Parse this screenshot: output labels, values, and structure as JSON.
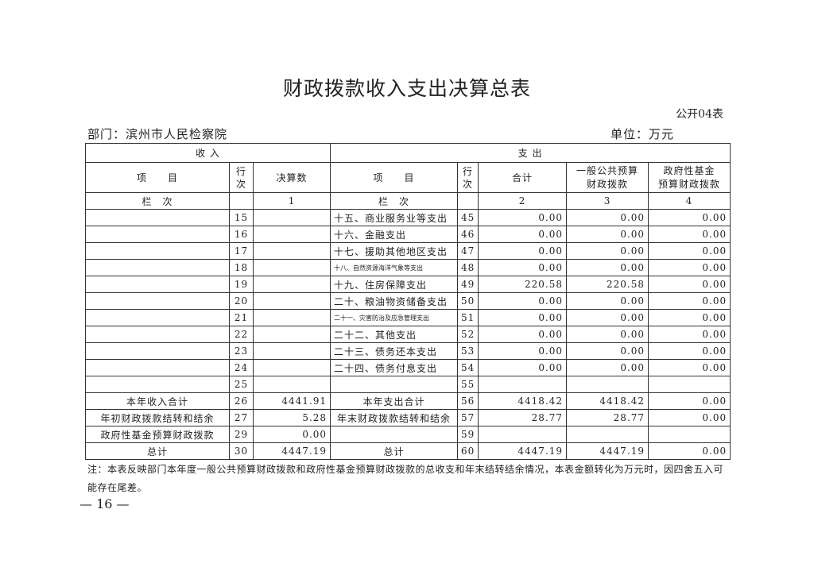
{
  "title": "财政拨款收入支出决算总表",
  "form_no": "公开04表",
  "department": "部门：滨州市人民检察院",
  "unit": "单位：万元",
  "header": {
    "income": "收 入",
    "expense": "支 出",
    "item": "项　　目",
    "line": "行\n次",
    "amount": "决算数",
    "total": "合计",
    "general": "一般公共预算\n财政拨款",
    "fund": "政府性基金\n预算财政拨款",
    "col_label": "栏　次",
    "col1": "1",
    "col2": "2",
    "col3": "3",
    "col4": "4"
  },
  "rows": [
    {
      "in_item": "",
      "in_line": "15",
      "in_amt": "",
      "ex_item": "十五、商业服务业等支出",
      "ex_line": "45",
      "total": "0.00",
      "general": "0.00",
      "fund": "0.00"
    },
    {
      "in_item": "",
      "in_line": "16",
      "in_amt": "",
      "ex_item": "十六、金融支出",
      "ex_line": "46",
      "total": "0.00",
      "general": "0.00",
      "fund": "0.00"
    },
    {
      "in_item": "",
      "in_line": "17",
      "in_amt": "",
      "ex_item": "十七、援助其他地区支出",
      "ex_line": "47",
      "total": "0.00",
      "general": "0.00",
      "fund": "0.00"
    },
    {
      "in_item": "",
      "in_line": "18",
      "in_amt": "",
      "ex_item": "十八、自然资源海洋气象等支出",
      "ex_line": "48",
      "total": "0.00",
      "general": "0.00",
      "fund": "0.00",
      "small": true
    },
    {
      "in_item": "",
      "in_line": "19",
      "in_amt": "",
      "ex_item": "十九、住房保障支出",
      "ex_line": "49",
      "total": "220.58",
      "general": "220.58",
      "fund": "0.00"
    },
    {
      "in_item": "",
      "in_line": "20",
      "in_amt": "",
      "ex_item": "二十、粮油物资储备支出",
      "ex_line": "50",
      "total": "0.00",
      "general": "0.00",
      "fund": "0.00"
    },
    {
      "in_item": "",
      "in_line": "21",
      "in_amt": "",
      "ex_item": "二十一、灾害防治及应急管理支出",
      "ex_line": "51",
      "total": "0.00",
      "general": "0.00",
      "fund": "0.00",
      "small": true
    },
    {
      "in_item": "",
      "in_line": "22",
      "in_amt": "",
      "ex_item": "二十二、其他支出",
      "ex_line": "52",
      "total": "0.00",
      "general": "0.00",
      "fund": "0.00"
    },
    {
      "in_item": "",
      "in_line": "23",
      "in_amt": "",
      "ex_item": "二十三、债务还本支出",
      "ex_line": "53",
      "total": "0.00",
      "general": "0.00",
      "fund": "0.00"
    },
    {
      "in_item": "",
      "in_line": "24",
      "in_amt": "",
      "ex_item": "二十四、债务付息支出",
      "ex_line": "54",
      "total": "0.00",
      "general": "0.00",
      "fund": "0.00"
    },
    {
      "in_item": "",
      "in_line": "25",
      "in_amt": "",
      "ex_item": "",
      "ex_line": "55",
      "total": "",
      "general": "",
      "fund": ""
    },
    {
      "in_item": "本年收入合计",
      "in_line": "26",
      "in_amt": "4441.91",
      "ex_item": "本年支出合计",
      "ex_line": "56",
      "total": "4418.42",
      "general": "4418.42",
      "fund": "0.00",
      "center": true
    },
    {
      "in_item": "年初财政拨款结转和结余",
      "in_line": "27",
      "in_amt": "5.28",
      "ex_item": "年末财政拨款结转和结余",
      "ex_line": "57",
      "total": "28.77",
      "general": "28.77",
      "fund": "0.00",
      "center": true
    },
    {
      "in_item": "政府性基金预算财政拨款",
      "in_line": "29",
      "in_amt": "0.00",
      "ex_item": "",
      "ex_line": "59",
      "total": "",
      "general": "",
      "fund": "",
      "center": true
    },
    {
      "in_item": "总计",
      "in_line": "30",
      "in_amt": "4447.19",
      "ex_item": "总计",
      "ex_line": "60",
      "total": "4447.19",
      "general": "4447.19",
      "fund": "0.00",
      "center": true
    }
  ],
  "note": "注：本表反映部门本年度一般公共预算财政拨款和政府性基金预算财政拨款的总收支和年末结转结余情况，本表金额转化为万元时，因四舍五入可能存在尾差。",
  "page_number": "— 16 —"
}
